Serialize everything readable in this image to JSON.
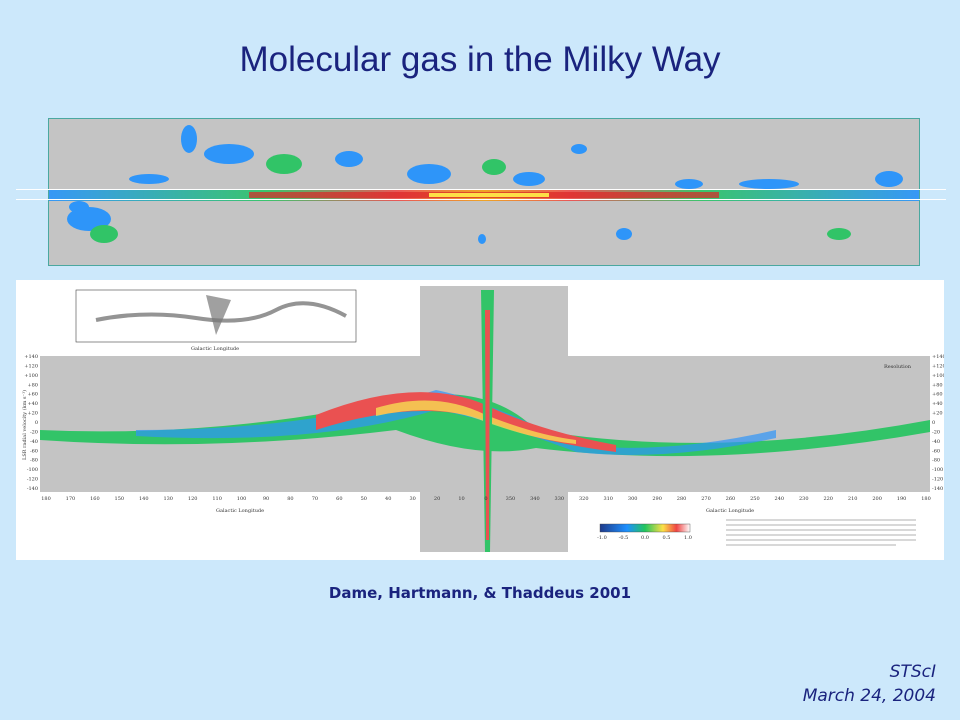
{
  "slide": {
    "title": "Molecular gas in the Milky Way",
    "citation": "Dame, Hartmann, & Thaddeus 2001",
    "footer_org": "STScI",
    "footer_date": "March 24, 2004"
  },
  "lv_figure": {
    "x_axis_label": "Galactic Longitude",
    "y_axis_label": "LSR radial velocity (km s⁻¹)",
    "inset_x_label": "Galactic Longitude",
    "resolution_label": "Resolution",
    "colorbar_ticks": [
      "-1.0",
      "-0.5",
      "0.0",
      "0.5",
      "1.0"
    ],
    "x_ticks_lower": [
      "180",
      "170",
      "160",
      "150",
      "140",
      "130",
      "120",
      "110",
      "100",
      "90",
      "80",
      "70",
      "60",
      "50",
      "40",
      "30",
      "20",
      "10",
      "0",
      "350",
      "340",
      "330",
      "320",
      "310",
      "300",
      "290",
      "280",
      "270",
      "260",
      "250",
      "240",
      "230",
      "220",
      "210",
      "200",
      "190",
      "180"
    ],
    "y_ticks": [
      "+140",
      "+120",
      "+100",
      "+80",
      "+60",
      "+40",
      "+20",
      "0",
      "-20",
      "-40",
      "-60",
      "-80",
      "-100",
      "-120",
      "-140"
    ]
  },
  "colors": {
    "background": "#cce8fb",
    "title": "#1a237e",
    "map_gray": "#c4c4c4"
  }
}
